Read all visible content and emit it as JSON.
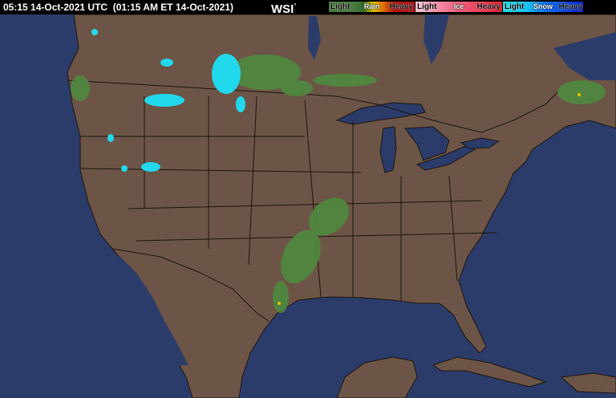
{
  "header": {
    "timestamp": "05:15 14-Oct-2021 UTC  (01:15 AM ET 14-Oct-2021)",
    "logo": "WSI",
    "logo_mark": "°"
  },
  "legend": [
    {
      "type": "Rain",
      "light": "Light",
      "heavy": "Heavy",
      "gradient": [
        "#3d6b35",
        "#5a9a48",
        "#e0c400",
        "#e07a00",
        "#b01818"
      ]
    },
    {
      "type": "Ice",
      "light": "Light",
      "heavy": "Heavy",
      "gradient": [
        "#f6c8d4",
        "#f07090",
        "#e02030"
      ]
    },
    {
      "type": "Snow",
      "light": "Light",
      "heavy": "Heavy",
      "gradient": [
        "#18e0e8",
        "#1070f0",
        "#1020c0"
      ]
    }
  ],
  "colors": {
    "land": "#6c5546",
    "water": "#2c3c6a",
    "rain": "#4f8a3f",
    "snow": "#22d8ec",
    "borders": "#1c1410"
  }
}
